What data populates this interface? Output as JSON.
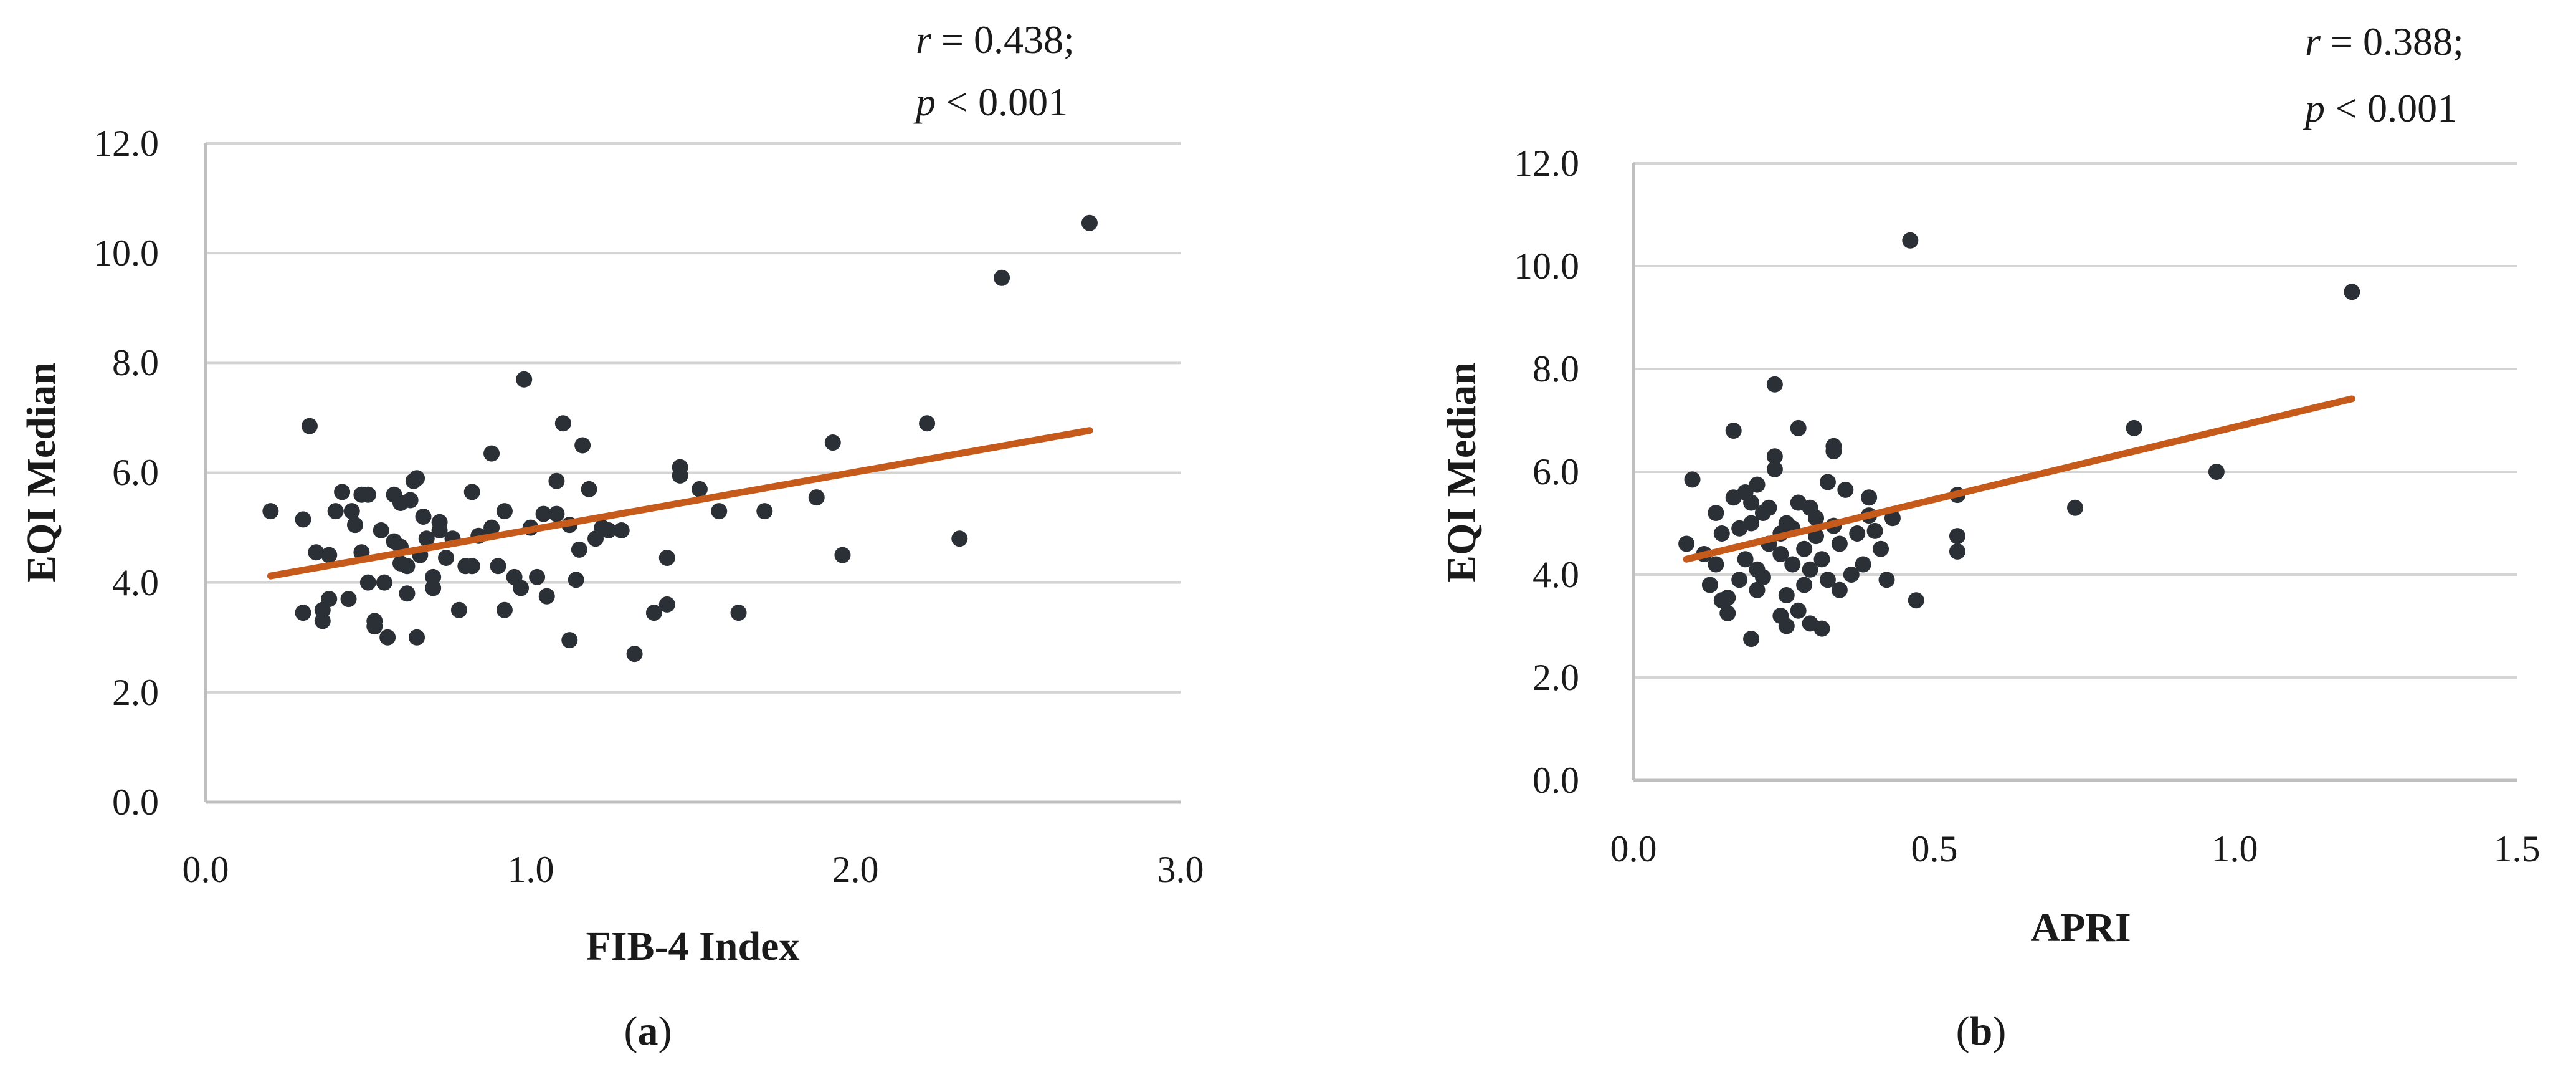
{
  "chart_data": [
    {
      "id": "a",
      "type": "scatter",
      "caption_letter": "a",
      "xlabel": "FIB-4 Index",
      "ylabel": "EQI Median",
      "xlim": [
        0,
        3
      ],
      "ylim": [
        0,
        12
      ],
      "x_ticks": [
        "0.0",
        "1.0",
        "2.0",
        "3.0"
      ],
      "y_ticks": [
        "0.0",
        "2.0",
        "4.0",
        "6.0",
        "8.0",
        "10.0",
        "12.0"
      ],
      "grid": "horizontal",
      "annotation": {
        "r": "r = 0.438;",
        "p": "p < 0.001"
      },
      "trendline": {
        "x": [
          0.2,
          2.72
        ],
        "y": [
          4.12,
          6.77
        ]
      },
      "points": [
        [
          0.2,
          5.3
        ],
        [
          0.3,
          5.15
        ],
        [
          0.32,
          6.85
        ],
        [
          0.3,
          3.45
        ],
        [
          0.34,
          4.55
        ],
        [
          0.36,
          3.3
        ],
        [
          0.36,
          3.5
        ],
        [
          0.38,
          4.5
        ],
        [
          0.38,
          3.7
        ],
        [
          0.4,
          5.3
        ],
        [
          0.42,
          5.65
        ],
        [
          0.44,
          3.7
        ],
        [
          0.45,
          5.3
        ],
        [
          0.46,
          5.05
        ],
        [
          0.48,
          4.55
        ],
        [
          0.48,
          5.6
        ],
        [
          0.5,
          5.6
        ],
        [
          0.5,
          4.0
        ],
        [
          0.52,
          3.3
        ],
        [
          0.52,
          3.2
        ],
        [
          0.54,
          4.95
        ],
        [
          0.55,
          4.0
        ],
        [
          0.56,
          3.0
        ],
        [
          0.58,
          5.6
        ],
        [
          0.58,
          4.75
        ],
        [
          0.6,
          4.35
        ],
        [
          0.6,
          4.65
        ],
        [
          0.6,
          5.45
        ],
        [
          0.62,
          4.3
        ],
        [
          0.62,
          3.8
        ],
        [
          0.63,
          5.5
        ],
        [
          0.64,
          5.85
        ],
        [
          0.65,
          3.0
        ],
        [
          0.65,
          5.9
        ],
        [
          0.66,
          4.5
        ],
        [
          0.67,
          5.2
        ],
        [
          0.68,
          4.8
        ],
        [
          0.7,
          3.9
        ],
        [
          0.7,
          4.1
        ],
        [
          0.72,
          4.95
        ],
        [
          0.72,
          5.1
        ],
        [
          0.74,
          4.45
        ],
        [
          0.76,
          4.8
        ],
        [
          0.78,
          3.5
        ],
        [
          0.8,
          4.3
        ],
        [
          0.82,
          4.3
        ],
        [
          0.82,
          5.65
        ],
        [
          0.84,
          4.85
        ],
        [
          0.88,
          6.35
        ],
        [
          0.88,
          5.0
        ],
        [
          0.9,
          4.3
        ],
        [
          0.92,
          5.3
        ],
        [
          0.92,
          3.5
        ],
        [
          0.95,
          4.1
        ],
        [
          0.97,
          3.9
        ],
        [
          0.98,
          7.7
        ],
        [
          1.0,
          5.0
        ],
        [
          1.02,
          4.1
        ],
        [
          1.04,
          5.25
        ],
        [
          1.05,
          3.75
        ],
        [
          1.08,
          5.85
        ],
        [
          1.08,
          5.25
        ],
        [
          1.1,
          6.9
        ],
        [
          1.12,
          2.95
        ],
        [
          1.12,
          5.05
        ],
        [
          1.14,
          4.05
        ],
        [
          1.15,
          4.6
        ],
        [
          1.16,
          6.5
        ],
        [
          1.18,
          5.7
        ],
        [
          1.2,
          4.8
        ],
        [
          1.22,
          5.0
        ],
        [
          1.24,
          4.95
        ],
        [
          1.28,
          4.95
        ],
        [
          1.32,
          2.7
        ],
        [
          1.38,
          3.45
        ],
        [
          1.42,
          3.6
        ],
        [
          1.42,
          4.45
        ],
        [
          1.46,
          5.95
        ],
        [
          1.46,
          6.1
        ],
        [
          1.52,
          5.7
        ],
        [
          1.58,
          5.3
        ],
        [
          1.64,
          3.45
        ],
        [
          1.72,
          5.3
        ],
        [
          1.88,
          5.55
        ],
        [
          1.93,
          6.55
        ],
        [
          1.96,
          4.5
        ],
        [
          2.22,
          6.9
        ],
        [
          2.32,
          4.8
        ],
        [
          2.45,
          9.55
        ],
        [
          2.72,
          10.55
        ]
      ]
    },
    {
      "id": "b",
      "type": "scatter",
      "caption_letter": "b",
      "xlabel": "APRI",
      "ylabel": "EQI Median",
      "xlim": [
        0,
        1.5
      ],
      "ylim": [
        0,
        12
      ],
      "x_ticks": [
        "0.0",
        "0.5",
        "1.0",
        "1.5"
      ],
      "y_ticks": [
        "0.0",
        "2.0",
        "4.0",
        "6.0",
        "8.0",
        "10.0",
        "12.0"
      ],
      "grid": "horizontal",
      "annotation": {
        "r": "r = 0.388;",
        "p": "p < 0.001"
      },
      "trendline": {
        "x": [
          0.09,
          1.22
        ],
        "y": [
          4.3,
          7.42
        ]
      },
      "points": [
        [
          0.09,
          4.6
        ],
        [
          0.1,
          5.85
        ],
        [
          0.12,
          4.4
        ],
        [
          0.13,
          3.8
        ],
        [
          0.14,
          4.2
        ],
        [
          0.14,
          5.2
        ],
        [
          0.15,
          4.8
        ],
        [
          0.15,
          3.5
        ],
        [
          0.16,
          3.25
        ],
        [
          0.16,
          3.55
        ],
        [
          0.17,
          6.8
        ],
        [
          0.17,
          5.5
        ],
        [
          0.18,
          3.9
        ],
        [
          0.18,
          4.9
        ],
        [
          0.19,
          5.6
        ],
        [
          0.19,
          4.3
        ],
        [
          0.2,
          2.75
        ],
        [
          0.2,
          5.4
        ],
        [
          0.2,
          5.0
        ],
        [
          0.21,
          3.7
        ],
        [
          0.21,
          4.1
        ],
        [
          0.21,
          5.75
        ],
        [
          0.22,
          5.2
        ],
        [
          0.22,
          3.95
        ],
        [
          0.23,
          4.6
        ],
        [
          0.23,
          5.3
        ],
        [
          0.24,
          7.7
        ],
        [
          0.24,
          6.3
        ],
        [
          0.24,
          6.05
        ],
        [
          0.25,
          4.8
        ],
        [
          0.25,
          4.4
        ],
        [
          0.25,
          3.2
        ],
        [
          0.26,
          3.0
        ],
        [
          0.26,
          3.6
        ],
        [
          0.26,
          5.0
        ],
        [
          0.27,
          4.9
        ],
        [
          0.27,
          4.2
        ],
        [
          0.28,
          6.85
        ],
        [
          0.28,
          5.4
        ],
        [
          0.28,
          3.3
        ],
        [
          0.29,
          4.5
        ],
        [
          0.29,
          3.8
        ],
        [
          0.3,
          3.05
        ],
        [
          0.3,
          4.1
        ],
        [
          0.3,
          5.3
        ],
        [
          0.31,
          4.75
        ],
        [
          0.31,
          5.1
        ],
        [
          0.32,
          2.95
        ],
        [
          0.32,
          4.3
        ],
        [
          0.33,
          3.9
        ],
        [
          0.33,
          5.8
        ],
        [
          0.34,
          6.4
        ],
        [
          0.34,
          6.5
        ],
        [
          0.34,
          4.95
        ],
        [
          0.35,
          3.7
        ],
        [
          0.35,
          4.6
        ],
        [
          0.36,
          5.65
        ],
        [
          0.37,
          4.0
        ],
        [
          0.38,
          4.8
        ],
        [
          0.39,
          4.2
        ],
        [
          0.4,
          5.5
        ],
        [
          0.4,
          5.15
        ],
        [
          0.41,
          4.85
        ],
        [
          0.42,
          4.5
        ],
        [
          0.43,
          3.9
        ],
        [
          0.44,
          5.1
        ],
        [
          0.47,
          10.5
        ],
        [
          0.48,
          3.5
        ],
        [
          0.55,
          5.55
        ],
        [
          0.55,
          4.45
        ],
        [
          0.55,
          4.75
        ],
        [
          0.75,
          5.3
        ],
        [
          0.85,
          6.85
        ],
        [
          0.99,
          6.0
        ],
        [
          1.22,
          9.5
        ]
      ]
    }
  ],
  "colors": {
    "point": "#2b2f36",
    "trendline": "#c55a1b",
    "grid": "#d4d4d4",
    "axis": "#bfbfbf"
  }
}
